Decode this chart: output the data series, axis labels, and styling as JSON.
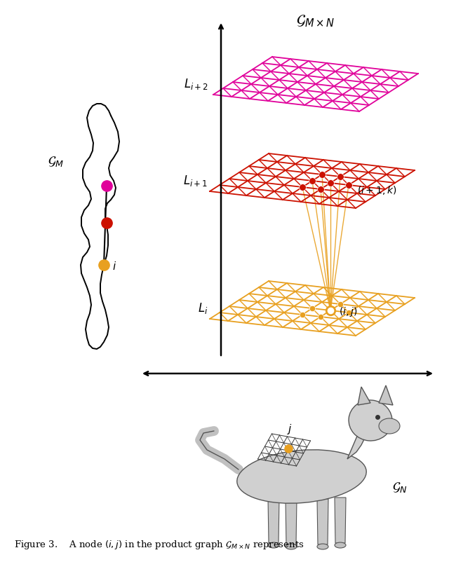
{
  "background_color": "#ffffff",
  "grid_li_color": "#E8A020",
  "grid_li1_color": "#CC1100",
  "grid_li2_color": "#E0009A",
  "node_li_color": "#E8A020",
  "node_li1_color": "#CC1100",
  "node_li2_color": "#E0009A",
  "connect_color": "#E8A020",
  "label_Li": "$L_i$",
  "label_Li1": "$L_{i+1}$",
  "label_Li2": "$L_{i+2}$",
  "label_GMN": "$\\mathcal{G}_{M \\times N}$",
  "label_GM": "$\\mathcal{G}_M$",
  "label_GN": "$\\mathcal{G}_N$",
  "label_ij": "$(i,j)$",
  "label_i1k": "$(i+1,k)$",
  "label_i": "$i$",
  "label_j": "$j$",
  "figsize": [
    6.4,
    8.02
  ],
  "dpi": 100
}
